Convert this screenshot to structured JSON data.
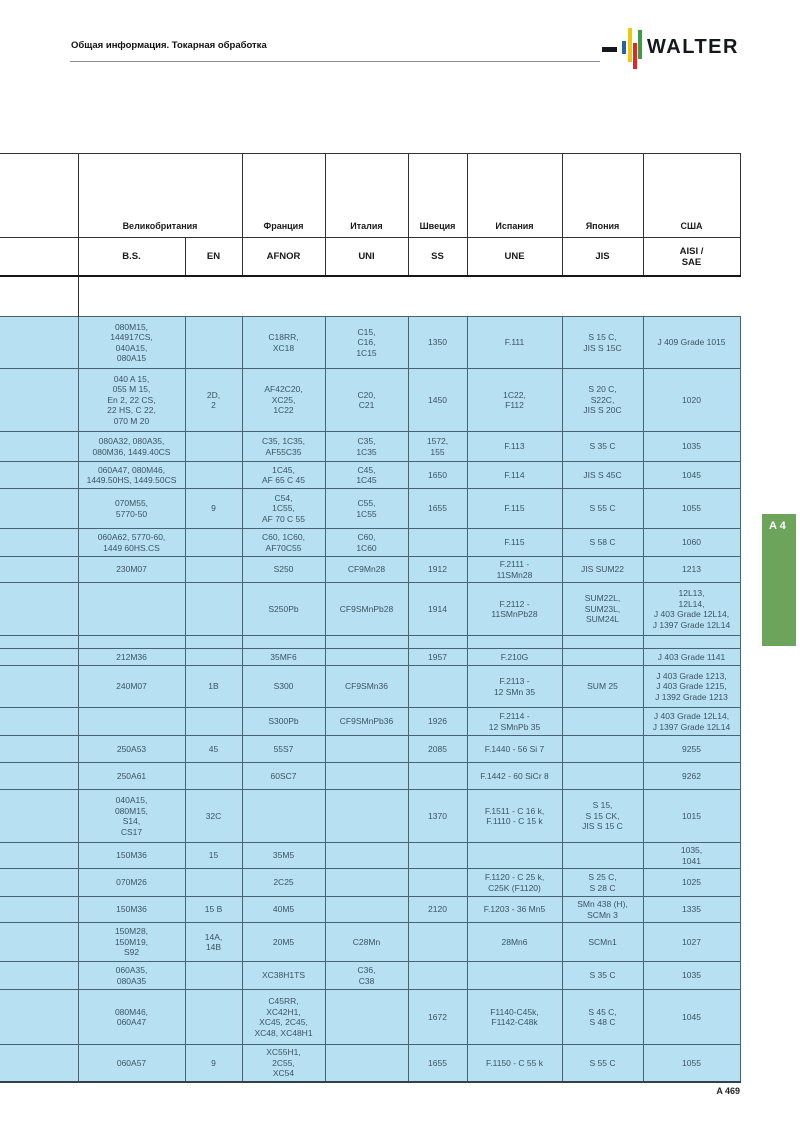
{
  "header": {
    "breadcrumb": "Общая информация. Токарная обработка",
    "logo_text": "WALTER"
  },
  "section_tab": {
    "label": "A 4"
  },
  "footer": {
    "page_number": "A 469"
  },
  "colors": {
    "body_cell_background": "#b7e1f2",
    "section_tab_green": "#6ca45c",
    "logo_bar_blue": "#2563a8",
    "logo_bar_yellow": "#f2c50f",
    "logo_bar_red": "#d92b2b",
    "logo_bar_green": "#3f9b48"
  },
  "table": {
    "country_header": [
      {
        "label": "",
        "span": 1
      },
      {
        "label": "Великобритания",
        "span": 2
      },
      {
        "label": "Франция",
        "span": 1
      },
      {
        "label": "Италия",
        "span": 1
      },
      {
        "label": "Швеция",
        "span": 1
      },
      {
        "label": "Испания",
        "span": 1
      },
      {
        "label": "Япония",
        "span": 1
      },
      {
        "label": "США",
        "span": 1
      }
    ],
    "standards_header": [
      "",
      "B.S.",
      "EN",
      "AFNOR",
      "UNI",
      "SS",
      "UNE",
      "JIS",
      "AISI /\nSAE"
    ],
    "rows": [
      [
        "",
        "080M15,\n144917CS,\n040A15,\n080A15",
        "",
        "C18RR,\nXC18",
        "C15,\nC16,\n1C15",
        "1350",
        "F.111",
        "S 15 C,\nJIS S 15C",
        "J 409 Grade 1015"
      ],
      [
        "",
        "040 A 15,\n055 M 15,\nEn 2, 22 CS,\n22 HS, C 22,\n070 M 20",
        "2D,\n2",
        "AF42C20,\nXC25,\n1C22",
        "C20,\nC21",
        "1450",
        "1C22,\nF112",
        "S 20 C,\nS22C,\nJIS S 20C",
        "1020"
      ],
      [
        "",
        "080A32, 080A35,\n080M36, 1449.40CS",
        "",
        "C35, 1C35,\nAF55C35",
        "C35,\n1C35",
        "1572,\n155",
        "F.113",
        "S 35 C",
        "1035"
      ],
      [
        "",
        "060A47, 080M46,\n1449.50HS, 1449.50CS",
        "",
        "1C45,\nAF 65 C 45",
        "C45,\n1C45",
        "1650",
        "F.114",
        "JIS S 45C",
        "1045"
      ],
      [
        "",
        "070M55,\n5770-50",
        "9",
        "C54,\n1C55,\nAF 70 C 55",
        "C55,\n1C55",
        "1655",
        "F.115",
        "S 55 C",
        "1055"
      ],
      [
        "",
        "060A62, 5770-60,\n1449 60HS.CS",
        "",
        "C60, 1C60,\nAF70C55",
        "C60,\n1C60",
        "",
        "F.115",
        "S 58 C",
        "1060"
      ],
      [
        "",
        "230M07",
        "",
        "S250",
        "CF9Mn28",
        "1912",
        "F.2111 -\n11SMn28",
        "JIS SUM22",
        "1213"
      ],
      [
        "",
        "",
        "",
        "S250Pb",
        "CF9SMnPb28",
        "1914",
        "F.2112 -\n11SMnPb28",
        "SUM22L,\nSUM23L,\nSUM24L",
        "12L13,\n12L14,\nJ 403 Grade 12L14,\nJ 1397 Grade 12L14"
      ],
      {
        "spacer": true
      },
      [
        "",
        "212M36",
        "",
        "35MF6",
        "",
        "1957",
        "F.210G",
        "",
        "J 403 Grade 1141"
      ],
      [
        "",
        "240M07",
        "1B",
        "S300",
        "CF9SMn36",
        "",
        "F.2113 -\n12 SMn 35",
        "SUM 25",
        "J 403 Grade 1213,\nJ 403 Grade 1215,\nJ 1392 Grade 1213"
      ],
      [
        "",
        "",
        "",
        "S300Pb",
        "CF9SMnPb36",
        "1926",
        "F.2114 -\n12 SMnPb 35",
        "",
        "J 403 Grade 12L14,\nJ 1397 Grade 12L14"
      ],
      [
        "",
        "250A53",
        "45",
        "55S7",
        "",
        "2085",
        "F.1440 - 56 Si 7",
        "",
        "9255"
      ],
      [
        "",
        "250A61",
        "",
        "60SC7",
        "",
        "",
        "F.1442 - 60 SiCr 8",
        "",
        "9262"
      ],
      [
        "",
        "040A15,\n080M15,\nS14,\nCS17",
        "32C",
        "",
        "",
        "1370",
        "F.1511 - C 16 k,\nF.1110 - C 15 k",
        "S 15,\nS 15 CK,\nJIS S 15 C",
        "1015"
      ],
      [
        "",
        "150M36",
        "15",
        "35M5",
        "",
        "",
        "",
        "",
        "1035,\n1041"
      ],
      [
        "",
        "070M26",
        "",
        "2C25",
        "",
        "",
        "F.1120 - C 25 k,\nC25K (F1120)",
        "S 25 C,\nS 28 C",
        "1025"
      ],
      [
        "",
        "150M36",
        "15 B",
        "40M5",
        "",
        "2120",
        "F.1203 - 36 Mn5",
        "SMn 438 (H),\nSCMn 3",
        "1335"
      ],
      [
        "",
        "150M28,\n150M19,\nS92",
        "14A,\n14B",
        "20M5",
        "C28Mn",
        "",
        "28Mn6",
        "SCMn1",
        "1027"
      ],
      [
        "",
        "060A35,\n080A35",
        "",
        "XC38H1TS",
        "C36,\nC38",
        "",
        "",
        "S 35 C",
        "1035"
      ],
      [
        "",
        "080M46,\n060A47",
        "",
        "C45RR,\nXC42H1,\nXC45, 2C45,\nXC48, XC48H1",
        "",
        "1672",
        "F1140-C45k,\nF1142-C48k",
        "S 45 C,\nS 48 C",
        "1045"
      ],
      [
        "",
        "060A57",
        "9",
        "XC55H1,\n2C55,\nXC54",
        "",
        "1655",
        "F.1150 - C 55 k",
        "S 55 C",
        "1055"
      ]
    ]
  }
}
